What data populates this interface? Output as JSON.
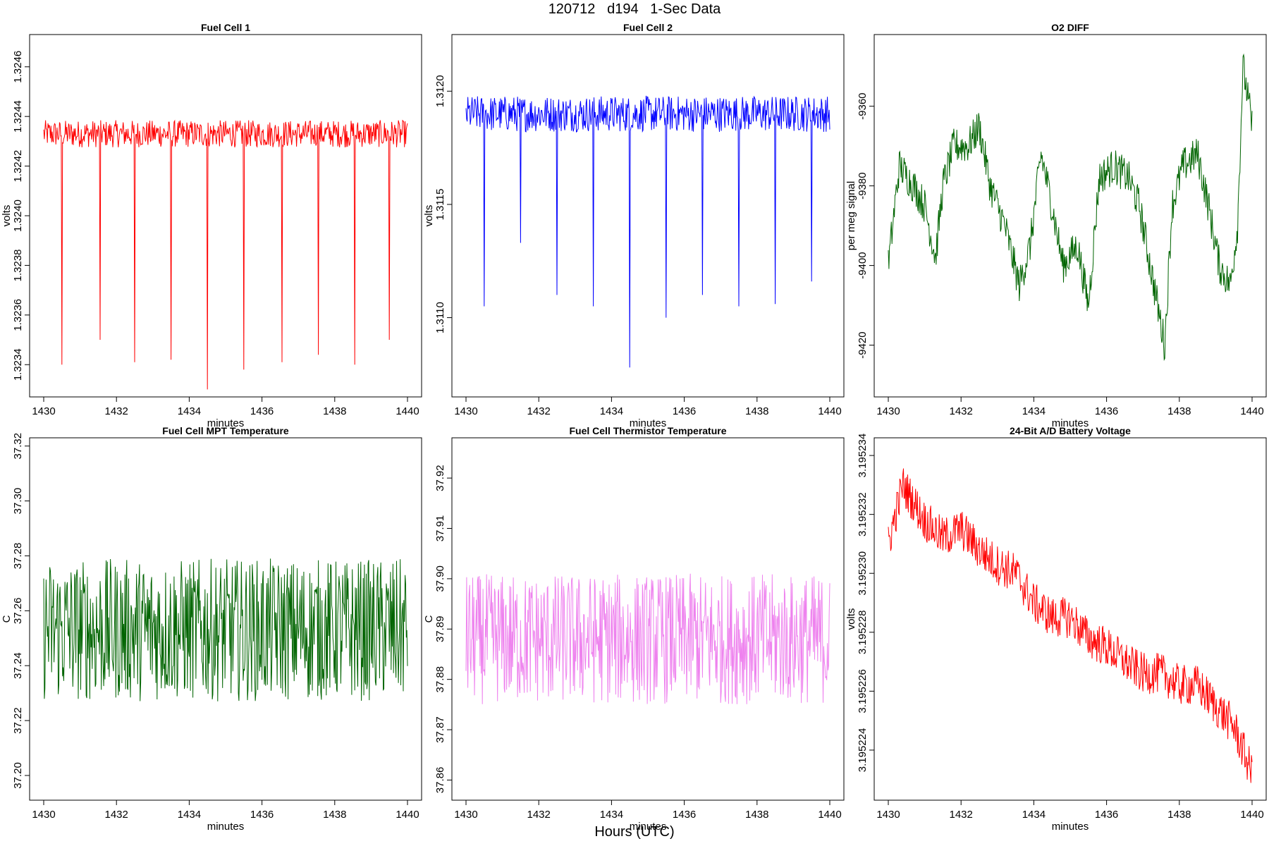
{
  "header": {
    "title": "120712   d194   1-Sec Data"
  },
  "footer": {
    "xlabel": "Hours (UTC)"
  },
  "chart_data": [
    {
      "type": "line",
      "title": "Fuel Cell 1",
      "xlabel": "minutes",
      "ylabel": "volts",
      "color": "#ff0000",
      "xlim": [
        1430,
        1440
      ],
      "ylim": [
        1.32327,
        1.32473
      ],
      "xticks": [
        1430,
        1432,
        1434,
        1436,
        1438,
        1440
      ],
      "yticks": [
        "1.3234",
        "1.3236",
        "1.3238",
        "1.3240",
        "1.3242",
        "1.3244",
        "1.3246"
      ],
      "signal": {
        "base": 1.32433,
        "noise": 5.5e-05,
        "spikes_at": [
          1430.5,
          1431.55,
          1432.5,
          1433.5,
          1434.5,
          1435.5,
          1436.55,
          1437.55,
          1438.55,
          1439.5
        ],
        "spike_values": [
          1.3234,
          1.3235,
          1.32341,
          1.32342,
          1.3233,
          1.32338,
          1.32341,
          1.32344,
          1.3234,
          1.3235
        ]
      }
    },
    {
      "type": "line",
      "title": "Fuel Cell 2",
      "xlabel": "minutes",
      "ylabel": "volts",
      "color": "#0000ff",
      "xlim": [
        1430,
        1440
      ],
      "ylim": [
        1.31065,
        1.31225
      ],
      "xticks": [
        1430,
        1432,
        1434,
        1436,
        1438,
        1440
      ],
      "yticks": [
        "1.3110",
        "1.3115",
        "1.3120"
      ],
      "signal": {
        "base": 1.3119,
        "noise": 8e-05,
        "spikes_at": [
          1430.5,
          1431.5,
          1432.5,
          1433.5,
          1434.5,
          1435.5,
          1436.5,
          1437.5,
          1438.5,
          1439.5
        ],
        "spike_values": [
          1.31105,
          1.31133,
          1.3111,
          1.31105,
          1.31078,
          1.311,
          1.3111,
          1.31105,
          1.31106,
          1.31116
        ]
      }
    },
    {
      "type": "line",
      "title": "O2 DIFF",
      "xlabel": "minutes",
      "ylabel": "per meg signal",
      "color": "#006400",
      "xlim": [
        1430,
        1440
      ],
      "ylim": [
        -9433,
        -9342
      ],
      "xticks": [
        1430,
        1432,
        1434,
        1436,
        1438,
        1440
      ],
      "yticks": [
        "-9420",
        "-9400",
        "-9380",
        "-9360"
      ],
      "signal": {
        "points": [
          [
            1430,
            -9400
          ],
          [
            1430.3,
            -9375
          ],
          [
            1430.7,
            -9380
          ],
          [
            1431,
            -9385
          ],
          [
            1431.3,
            -9398
          ],
          [
            1431.5,
            -9380
          ],
          [
            1431.8,
            -9370
          ],
          [
            1432.2,
            -9370
          ],
          [
            1432.5,
            -9365
          ],
          [
            1432.8,
            -9380
          ],
          [
            1433.2,
            -9390
          ],
          [
            1433.6,
            -9405
          ],
          [
            1433.9,
            -9395
          ],
          [
            1434.2,
            -9372
          ],
          [
            1434.5,
            -9385
          ],
          [
            1434.8,
            -9400
          ],
          [
            1435.2,
            -9395
          ],
          [
            1435.5,
            -9410
          ],
          [
            1435.8,
            -9378
          ],
          [
            1436.2,
            -9375
          ],
          [
            1436.6,
            -9378
          ],
          [
            1436.9,
            -9385
          ],
          [
            1437.2,
            -9400
          ],
          [
            1437.6,
            -9420
          ],
          [
            1437.8,
            -9385
          ],
          [
            1438.1,
            -9375
          ],
          [
            1438.5,
            -9372
          ],
          [
            1438.8,
            -9385
          ],
          [
            1439.1,
            -9400
          ],
          [
            1439.4,
            -9405
          ],
          [
            1439.6,
            -9390
          ],
          [
            1439.75,
            -9350
          ],
          [
            1440,
            -9365
          ]
        ]
      }
    },
    {
      "type": "line",
      "title": "Fuel Cell MPT Temperature",
      "xlabel": "minutes",
      "ylabel": "C",
      "color": "#006400",
      "xlim": [
        1430,
        1440
      ],
      "ylim": [
        37.191,
        37.323
      ],
      "xticks": [
        1430,
        1432,
        1434,
        1436,
        1438,
        1440
      ],
      "yticks": [
        "37.20",
        "37.22",
        "37.24",
        "37.26",
        "37.28",
        "37.30",
        "37.32"
      ],
      "signal": {
        "base": 37.253,
        "noise": 0.026
      }
    },
    {
      "type": "line",
      "title": "Fuel Cell Thermistor Temperature",
      "xlabel": "minutes",
      "ylabel": "C",
      "color": "#ee82ee",
      "xlim": [
        1430,
        1440
      ],
      "ylim": [
        37.856,
        37.928
      ],
      "xticks": [
        1430,
        1432,
        1434,
        1436,
        1438,
        1440
      ],
      "yticks": [
        "37.86",
        "37.87",
        "37.88",
        "37.89",
        "37.90",
        "37.91",
        "37.92"
      ],
      "signal": {
        "base": 37.888,
        "noise": 0.013
      }
    },
    {
      "type": "line",
      "title": "24-Bit A/D Battery Voltage",
      "xlabel": "minutes",
      "ylabel": "volts",
      "color": "#ff0000",
      "xlim": [
        1430,
        1440
      ],
      "ylim": [
        3.1952223,
        3.1952346
      ],
      "xticks": [
        1430,
        1432,
        1434,
        1436,
        1438,
        1440
      ],
      "yticks": [
        "3.195224",
        "3.195226",
        "3.195228",
        "3.195230",
        "3.195232",
        "3.195234"
      ],
      "signal": {
        "points": [
          [
            1430,
            3.195231
          ],
          [
            1430.4,
            3.195233
          ],
          [
            1431,
            3.1952318
          ],
          [
            1431.5,
            3.1952312
          ],
          [
            1432,
            3.1952315
          ],
          [
            1432.5,
            3.1952308
          ],
          [
            1433,
            3.1952303
          ],
          [
            1433.5,
            3.19523
          ],
          [
            1434,
            3.195229
          ],
          [
            1434.5,
            3.1952285
          ],
          [
            1435,
            3.1952285
          ],
          [
            1435.5,
            3.1952278
          ],
          [
            1436,
            3.1952275
          ],
          [
            1436.5,
            3.195227
          ],
          [
            1437,
            3.1952266
          ],
          [
            1437.5,
            3.1952266
          ],
          [
            1438,
            3.1952262
          ],
          [
            1438.5,
            3.1952262
          ],
          [
            1439,
            3.1952255
          ],
          [
            1439.5,
            3.1952248
          ],
          [
            1440,
            3.1952232
          ]
        ],
        "noise": 7e-07
      }
    }
  ]
}
